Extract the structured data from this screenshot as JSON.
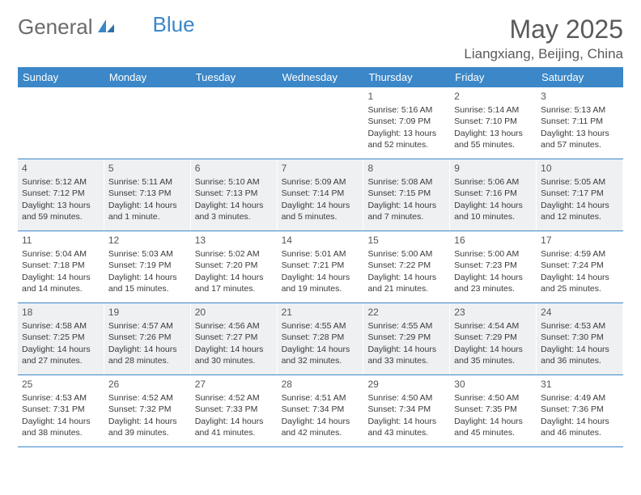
{
  "logo": {
    "text_general": "General",
    "text_blue": "Blue"
  },
  "header": {
    "month_title": "May 2025",
    "location": "Liangxiang, Beijing, China"
  },
  "colors": {
    "header_bg": "#3b87c8",
    "header_text": "#ffffff",
    "row_alt_bg": "#eef0f2",
    "border": "#3b87c8",
    "logo_gray": "#6b6b6b",
    "logo_blue": "#3b87c8"
  },
  "calendar": {
    "day_names": [
      "Sunday",
      "Monday",
      "Tuesday",
      "Wednesday",
      "Thursday",
      "Friday",
      "Saturday"
    ],
    "weeks": [
      [
        null,
        null,
        null,
        null,
        {
          "num": "1",
          "sunrise": "Sunrise: 5:16 AM",
          "sunset": "Sunset: 7:09 PM",
          "daylight": "Daylight: 13 hours and 52 minutes."
        },
        {
          "num": "2",
          "sunrise": "Sunrise: 5:14 AM",
          "sunset": "Sunset: 7:10 PM",
          "daylight": "Daylight: 13 hours and 55 minutes."
        },
        {
          "num": "3",
          "sunrise": "Sunrise: 5:13 AM",
          "sunset": "Sunset: 7:11 PM",
          "daylight": "Daylight: 13 hours and 57 minutes."
        }
      ],
      [
        {
          "num": "4",
          "sunrise": "Sunrise: 5:12 AM",
          "sunset": "Sunset: 7:12 PM",
          "daylight": "Daylight: 13 hours and 59 minutes."
        },
        {
          "num": "5",
          "sunrise": "Sunrise: 5:11 AM",
          "sunset": "Sunset: 7:13 PM",
          "daylight": "Daylight: 14 hours and 1 minute."
        },
        {
          "num": "6",
          "sunrise": "Sunrise: 5:10 AM",
          "sunset": "Sunset: 7:13 PM",
          "daylight": "Daylight: 14 hours and 3 minutes."
        },
        {
          "num": "7",
          "sunrise": "Sunrise: 5:09 AM",
          "sunset": "Sunset: 7:14 PM",
          "daylight": "Daylight: 14 hours and 5 minutes."
        },
        {
          "num": "8",
          "sunrise": "Sunrise: 5:08 AM",
          "sunset": "Sunset: 7:15 PM",
          "daylight": "Daylight: 14 hours and 7 minutes."
        },
        {
          "num": "9",
          "sunrise": "Sunrise: 5:06 AM",
          "sunset": "Sunset: 7:16 PM",
          "daylight": "Daylight: 14 hours and 10 minutes."
        },
        {
          "num": "10",
          "sunrise": "Sunrise: 5:05 AM",
          "sunset": "Sunset: 7:17 PM",
          "daylight": "Daylight: 14 hours and 12 minutes."
        }
      ],
      [
        {
          "num": "11",
          "sunrise": "Sunrise: 5:04 AM",
          "sunset": "Sunset: 7:18 PM",
          "daylight": "Daylight: 14 hours and 14 minutes."
        },
        {
          "num": "12",
          "sunrise": "Sunrise: 5:03 AM",
          "sunset": "Sunset: 7:19 PM",
          "daylight": "Daylight: 14 hours and 15 minutes."
        },
        {
          "num": "13",
          "sunrise": "Sunrise: 5:02 AM",
          "sunset": "Sunset: 7:20 PM",
          "daylight": "Daylight: 14 hours and 17 minutes."
        },
        {
          "num": "14",
          "sunrise": "Sunrise: 5:01 AM",
          "sunset": "Sunset: 7:21 PM",
          "daylight": "Daylight: 14 hours and 19 minutes."
        },
        {
          "num": "15",
          "sunrise": "Sunrise: 5:00 AM",
          "sunset": "Sunset: 7:22 PM",
          "daylight": "Daylight: 14 hours and 21 minutes."
        },
        {
          "num": "16",
          "sunrise": "Sunrise: 5:00 AM",
          "sunset": "Sunset: 7:23 PM",
          "daylight": "Daylight: 14 hours and 23 minutes."
        },
        {
          "num": "17",
          "sunrise": "Sunrise: 4:59 AM",
          "sunset": "Sunset: 7:24 PM",
          "daylight": "Daylight: 14 hours and 25 minutes."
        }
      ],
      [
        {
          "num": "18",
          "sunrise": "Sunrise: 4:58 AM",
          "sunset": "Sunset: 7:25 PM",
          "daylight": "Daylight: 14 hours and 27 minutes."
        },
        {
          "num": "19",
          "sunrise": "Sunrise: 4:57 AM",
          "sunset": "Sunset: 7:26 PM",
          "daylight": "Daylight: 14 hours and 28 minutes."
        },
        {
          "num": "20",
          "sunrise": "Sunrise: 4:56 AM",
          "sunset": "Sunset: 7:27 PM",
          "daylight": "Daylight: 14 hours and 30 minutes."
        },
        {
          "num": "21",
          "sunrise": "Sunrise: 4:55 AM",
          "sunset": "Sunset: 7:28 PM",
          "daylight": "Daylight: 14 hours and 32 minutes."
        },
        {
          "num": "22",
          "sunrise": "Sunrise: 4:55 AM",
          "sunset": "Sunset: 7:29 PM",
          "daylight": "Daylight: 14 hours and 33 minutes."
        },
        {
          "num": "23",
          "sunrise": "Sunrise: 4:54 AM",
          "sunset": "Sunset: 7:29 PM",
          "daylight": "Daylight: 14 hours and 35 minutes."
        },
        {
          "num": "24",
          "sunrise": "Sunrise: 4:53 AM",
          "sunset": "Sunset: 7:30 PM",
          "daylight": "Daylight: 14 hours and 36 minutes."
        }
      ],
      [
        {
          "num": "25",
          "sunrise": "Sunrise: 4:53 AM",
          "sunset": "Sunset: 7:31 PM",
          "daylight": "Daylight: 14 hours and 38 minutes."
        },
        {
          "num": "26",
          "sunrise": "Sunrise: 4:52 AM",
          "sunset": "Sunset: 7:32 PM",
          "daylight": "Daylight: 14 hours and 39 minutes."
        },
        {
          "num": "27",
          "sunrise": "Sunrise: 4:52 AM",
          "sunset": "Sunset: 7:33 PM",
          "daylight": "Daylight: 14 hours and 41 minutes."
        },
        {
          "num": "28",
          "sunrise": "Sunrise: 4:51 AM",
          "sunset": "Sunset: 7:34 PM",
          "daylight": "Daylight: 14 hours and 42 minutes."
        },
        {
          "num": "29",
          "sunrise": "Sunrise: 4:50 AM",
          "sunset": "Sunset: 7:34 PM",
          "daylight": "Daylight: 14 hours and 43 minutes."
        },
        {
          "num": "30",
          "sunrise": "Sunrise: 4:50 AM",
          "sunset": "Sunset: 7:35 PM",
          "daylight": "Daylight: 14 hours and 45 minutes."
        },
        {
          "num": "31",
          "sunrise": "Sunrise: 4:49 AM",
          "sunset": "Sunset: 7:36 PM",
          "daylight": "Daylight: 14 hours and 46 minutes."
        }
      ]
    ]
  }
}
